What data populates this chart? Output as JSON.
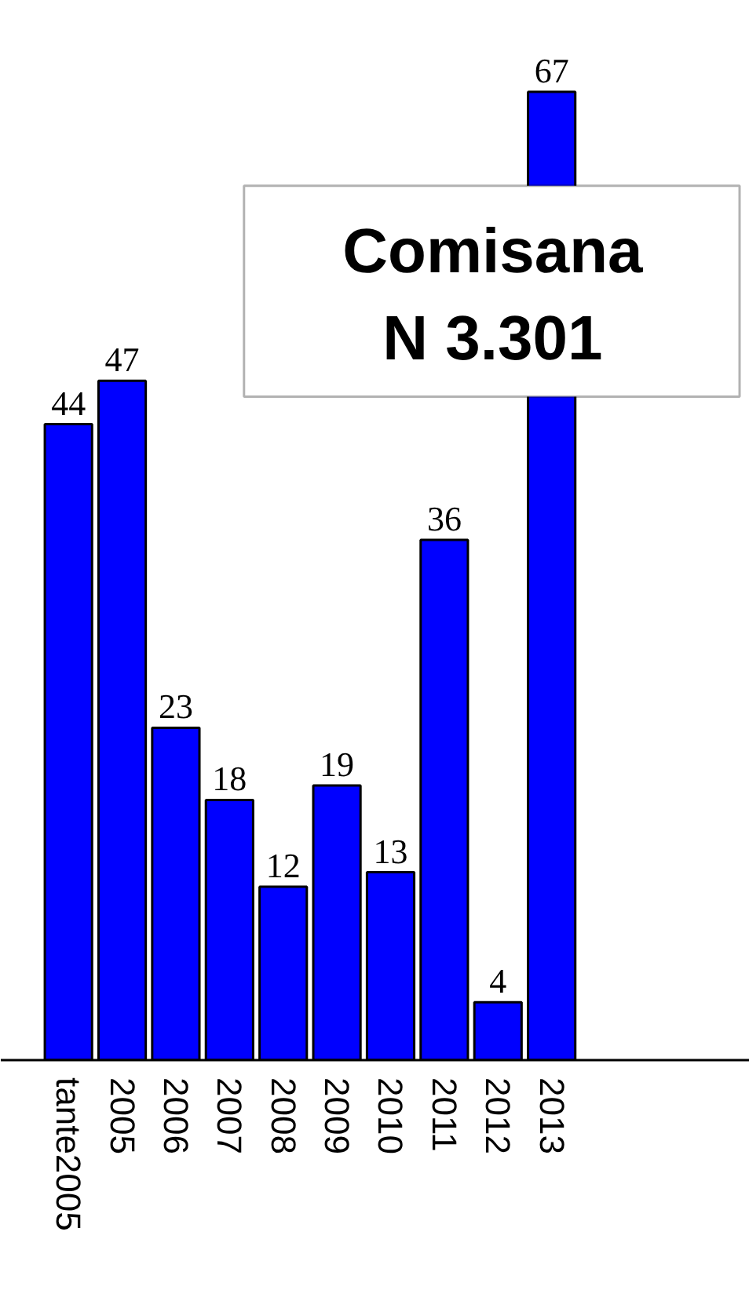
{
  "chart_data": {
    "type": "bar",
    "categories": [
      "tante2005",
      "2005",
      "2006",
      "2007",
      "2008",
      "2009",
      "2010",
      "2011",
      "2012",
      "2013"
    ],
    "values": [
      44,
      47,
      23,
      18,
      12,
      19,
      13,
      36,
      4,
      67
    ],
    "color": "#0000ff",
    "data_labels": true,
    "grid": false,
    "annotations": [
      "Comisana",
      "N 3.301"
    ]
  }
}
